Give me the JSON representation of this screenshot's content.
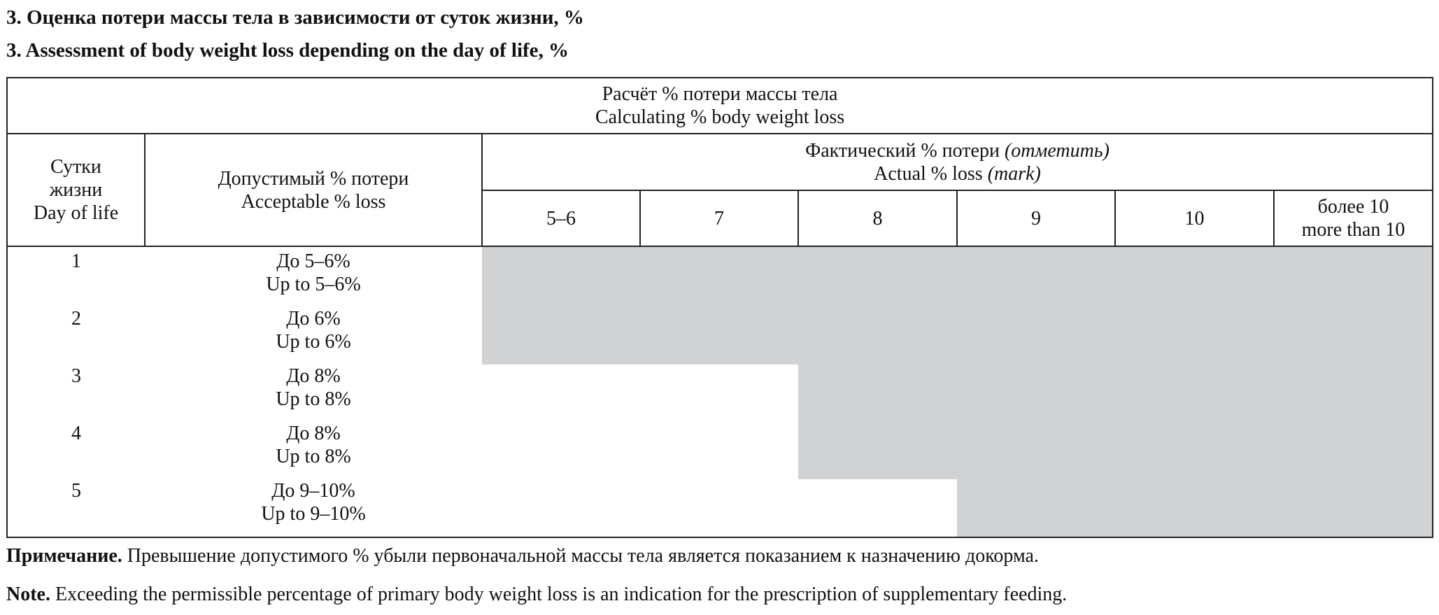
{
  "title_ru": "3. Оценка потери массы тела в зависимости от суток жизни, %",
  "title_en": "3. Assessment of body weight loss depending on the day of life, %",
  "table": {
    "header_top": {
      "ru": "Расчёт % потери массы тела",
      "en": "Calculating % body weight loss"
    },
    "col_day": {
      "ru1": "Сутки",
      "ru2": "жизни",
      "en": "Day of life"
    },
    "col_acceptable": {
      "ru": "Допустимый % потери",
      "en": "Acceptable % loss"
    },
    "col_actual": {
      "ru": "Фактический % потери",
      "ru_italic": "(отметить)",
      "en": "Actual % loss",
      "en_italic": "(mark)"
    },
    "loss_columns": [
      "5–6",
      "7",
      "8",
      "9",
      "10"
    ],
    "loss_last": {
      "ru": "более 10",
      "en": "more than 10"
    },
    "rows": [
      {
        "day": "1",
        "ru": "До 5–6%",
        "en": "Up to 5–6%",
        "shaded_from_column": "5–6"
      },
      {
        "day": "2",
        "ru": "До 6%",
        "en": "Up to 6%",
        "shaded_from_column": "5–6"
      },
      {
        "day": "3",
        "ru": "До 8%",
        "en": "Up to 8%",
        "shaded_from_column": "8"
      },
      {
        "day": "4",
        "ru": "До 8%",
        "en": "Up to 8%",
        "shaded_from_column": "8"
      },
      {
        "day": "5",
        "ru": "До 9–10%",
        "en": "Up to 9–10%",
        "shaded_from_column": "9"
      }
    ],
    "shade_color": "#d1d2d4"
  },
  "note_ru": {
    "label": "Примечание.",
    "text": " Превышение допустимого % убыли первоначальной массы тела является показанием к назначению докорма."
  },
  "note_en": {
    "label": "Note.",
    "text": " Exceeding the permissible percentage of primary body weight loss is an indication for the prescription of supplementary feeding."
  }
}
